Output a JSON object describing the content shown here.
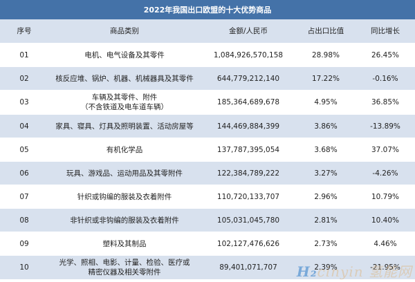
{
  "title": "2022年我国出口欧盟的十大优势商品",
  "headers": [
    "序号",
    "商品类别",
    "金额/人民币",
    "占出口比值",
    "同比增长"
  ],
  "rows": [
    {
      "no": "01",
      "category_lines": [
        "电机、电气设备及其零件"
      ],
      "amount": "1,084,926,570,158",
      "share": "28.98%",
      "growth": "26.45%"
    },
    {
      "no": "02",
      "category_lines": [
        "核反应堆、锅炉、机器、机械器具及其零件"
      ],
      "amount": "644,779,212,140",
      "share": "17.22%",
      "growth": "-0.16%"
    },
    {
      "no": "03",
      "category_lines": [
        "车辆及其零件、附件",
        "（不含铁道及电车道车辆）"
      ],
      "amount": "185,364,689,678",
      "share": "4.95%",
      "growth": "36.85%"
    },
    {
      "no": "04",
      "category_lines": [
        "家具、寝具、灯具及照明装置、活动房屋等"
      ],
      "amount": "144,469,884,399",
      "share": "3.86%",
      "growth": "-13.89%"
    },
    {
      "no": "05",
      "category_lines": [
        "有机化学品"
      ],
      "amount": "137,787,395,054",
      "share": "3.68%",
      "growth": "37.07%"
    },
    {
      "no": "06",
      "category_lines": [
        "玩具、游戏品、运动用品及其零附件"
      ],
      "amount": "122,384,789,222",
      "share": "3.27%",
      "growth": "-4.26%"
    },
    {
      "no": "07",
      "category_lines": [
        "针织或钩编的服装及衣着附件"
      ],
      "amount": "110,720,133,707",
      "share": "2.96%",
      "growth": "10.79%"
    },
    {
      "no": "08",
      "category_lines": [
        "非针织或非钩编的服装及衣着附件"
      ],
      "amount": "105,031,045,780",
      "share": "2.81%",
      "growth": "10.40%"
    },
    {
      "no": "09",
      "category_lines": [
        "塑料及其制品"
      ],
      "amount": "102,127,476,626",
      "share": "2.73%",
      "growth": "4.46%"
    },
    {
      "no": "10",
      "category_lines": [
        "光学、照相、电影、计量、检验、医疗或",
        "精密仪器及相关零附件"
      ],
      "amount": "89,401,071,707",
      "share": "2.39%",
      "growth": "-21.95%"
    }
  ],
  "watermark": {
    "brand": "H2cinyin",
    "cn": "氢能网"
  }
}
